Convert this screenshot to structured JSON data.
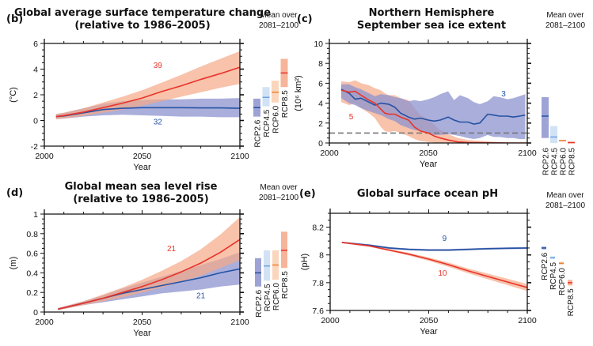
{
  "colors": {
    "rcp26_line": "#2452a3",
    "rcp26_band": "#8d93cf",
    "rcp45_line": "#6fa3dc",
    "rcp45_band": "#c9ddf3",
    "rcp60_line": "#f08030",
    "rcp60_band": "#f9cfb0",
    "rcp85_line": "#e8332a",
    "rcp85_band": "#f5a888",
    "overlap_band": "#b98a9a",
    "dashed": "#777777"
  },
  "side_header": [
    "Mean over",
    "2081–2100"
  ],
  "chart_data": [
    {
      "id": "b",
      "panel_label": "(b)",
      "type": "line",
      "title": [
        "Global average surface temperature change",
        "(relative to 1986–2005)"
      ],
      "xlabel": "Year",
      "ylabel": "(°C)",
      "xlim": [
        2000,
        2100
      ],
      "ylim": [
        -2,
        6
      ],
      "xticks": [
        2000,
        2050,
        2100
      ],
      "yticks": [
        -2,
        0,
        2,
        4,
        6
      ],
      "series": [
        {
          "name": "RCP2.6",
          "model_count": "32",
          "x": [
            2006,
            2010,
            2020,
            2030,
            2040,
            2050,
            2060,
            2070,
            2080,
            2090,
            2100
          ],
          "mean": [
            0.3,
            0.35,
            0.6,
            0.85,
            0.95,
            1.0,
            1.0,
            1.0,
            0.98,
            0.98,
            0.95
          ],
          "low": [
            0.1,
            0.15,
            0.3,
            0.4,
            0.45,
            0.4,
            0.35,
            0.3,
            0.3,
            0.25,
            0.25
          ],
          "high": [
            0.5,
            0.6,
            0.95,
            1.3,
            1.5,
            1.6,
            1.65,
            1.65,
            1.7,
            1.7,
            1.75
          ]
        },
        {
          "name": "RCP8.5",
          "model_count": "39",
          "x": [
            2006,
            2010,
            2020,
            2030,
            2040,
            2050,
            2060,
            2070,
            2080,
            2090,
            2100
          ],
          "mean": [
            0.3,
            0.38,
            0.65,
            1.0,
            1.35,
            1.75,
            2.25,
            2.7,
            3.2,
            3.65,
            4.15
          ],
          "low": [
            0.1,
            0.15,
            0.35,
            0.6,
            0.85,
            1.15,
            1.5,
            1.85,
            2.2,
            2.55,
            2.85
          ],
          "high": [
            0.5,
            0.6,
            0.95,
            1.4,
            1.85,
            2.35,
            2.95,
            3.55,
            4.2,
            4.8,
            5.4
          ]
        }
      ],
      "side_bars": [
        {
          "name": "RCP2.6",
          "mean": 1.0,
          "low": 0.3,
          "high": 1.7
        },
        {
          "name": "RCP4.5",
          "mean": 1.8,
          "low": 1.1,
          "high": 2.6
        },
        {
          "name": "RCP6.0",
          "mean": 2.2,
          "low": 1.4,
          "high": 3.1
        },
        {
          "name": "RCP8.5",
          "mean": 3.7,
          "low": 2.6,
          "high": 4.8
        }
      ]
    },
    {
      "id": "c",
      "panel_label": "(c)",
      "type": "line",
      "title": [
        "Northern Hemisphere",
        "September sea ice extent"
      ],
      "xlabel": "Year",
      "ylabel": "(10⁶ km²)",
      "xlim": [
        2000,
        2100
      ],
      "ylim": [
        0,
        10
      ],
      "xticks": [
        2000,
        2050,
        2100
      ],
      "yticks": [
        0,
        2,
        4,
        6,
        8,
        10
      ],
      "reference_line": 1,
      "series": [
        {
          "name": "RCP2.6",
          "model_count": "3",
          "x": [
            2006,
            2010,
            2013,
            2016,
            2020,
            2023,
            2026,
            2030,
            2033,
            2036,
            2040,
            2043,
            2046,
            2050,
            2053,
            2056,
            2060,
            2063,
            2066,
            2070,
            2073,
            2076,
            2080,
            2083,
            2086,
            2090,
            2093,
            2096,
            2099
          ],
          "mean": [
            5.4,
            5.0,
            4.4,
            4.5,
            4.1,
            3.8,
            4.0,
            3.9,
            3.6,
            3.0,
            2.6,
            2.4,
            2.5,
            2.3,
            2.2,
            2.3,
            2.6,
            2.3,
            2.1,
            2.1,
            1.9,
            2.0,
            2.9,
            2.8,
            2.7,
            2.7,
            2.6,
            2.7,
            2.8
          ],
          "low": [
            4.5,
            4.0,
            3.8,
            3.5,
            3.2,
            3.0,
            2.8,
            2.4,
            2.2,
            1.8,
            1.5,
            1.3,
            1.2,
            1.0,
            0.8,
            0.8,
            0.9,
            0.8,
            0.7,
            0.5,
            0.4,
            0.5,
            0.8,
            0.6,
            0.6,
            0.5,
            0.5,
            0.4,
            0.4
          ],
          "high": [
            5.9,
            5.9,
            5.6,
            5.4,
            5.0,
            4.7,
            4.9,
            4.8,
            4.6,
            4.5,
            4.2,
            4.3,
            4.2,
            4.4,
            4.6,
            4.9,
            5.2,
            4.3,
            4.8,
            4.5,
            4.1,
            3.9,
            4.2,
            4.7,
            4.6,
            4.4,
            4.5,
            4.7,
            4.9
          ]
        },
        {
          "name": "RCP8.5",
          "model_count": "5",
          "x": [
            2006,
            2010,
            2013,
            2016,
            2020,
            2023,
            2026,
            2028,
            2030,
            2033,
            2036,
            2040,
            2043,
            2046,
            2050,
            2053,
            2056,
            2060,
            2065,
            2070,
            2080,
            2090,
            2100
          ],
          "mean": [
            5.3,
            5.1,
            5.2,
            4.8,
            4.3,
            4.0,
            3.4,
            3.0,
            2.9,
            2.9,
            2.6,
            2.3,
            1.6,
            1.2,
            1.0,
            0.7,
            0.5,
            0.3,
            0.1,
            0.05,
            0.02,
            0.0,
            0.0
          ],
          "low": [
            4.1,
            3.8,
            4.0,
            3.5,
            3.0,
            2.5,
            1.6,
            1.2,
            1.1,
            1.2,
            1.0,
            0.7,
            0.4,
            0.2,
            0.1,
            0.05,
            0.0,
            0.0,
            0.0,
            0.0,
            0.0,
            0.0,
            0.0
          ],
          "high": [
            6.2,
            6.1,
            6.3,
            6.0,
            5.8,
            5.5,
            5.3,
            5.0,
            4.8,
            4.8,
            4.5,
            4.3,
            3.5,
            2.8,
            2.4,
            1.8,
            1.3,
            0.9,
            0.5,
            0.3,
            0.15,
            0.05,
            0.02
          ]
        }
      ],
      "side_bars": [
        {
          "name": "RCP2.6",
          "mean": 2.7,
          "low": 0.5,
          "high": 4.6
        },
        {
          "name": "RCP4.5",
          "mean": 0.6,
          "low": 0.0,
          "high": 1.7
        },
        {
          "name": "RCP6.0",
          "mean": 0.25,
          "low": 0.2,
          "high": 0.3
        },
        {
          "name": "RCP8.5",
          "mean": 0.05,
          "low": 0.0,
          "high": 0.1
        }
      ]
    },
    {
      "id": "d",
      "panel_label": "(d)",
      "type": "line",
      "title": [
        "Global mean sea level rise",
        "(relative to 1986–2005)"
      ],
      "xlabel": "Year",
      "ylabel": "(m)",
      "xlim": [
        2000,
        2100
      ],
      "ylim": [
        0,
        1
      ],
      "xticks": [
        2000,
        2050,
        2100
      ],
      "yticks": [
        0,
        0.2,
        0.4,
        0.6,
        0.8,
        1
      ],
      "series": [
        {
          "name": "RCP2.6",
          "model_count": "21",
          "x": [
            2007,
            2020,
            2030,
            2040,
            2050,
            2060,
            2070,
            2080,
            2090,
            2100
          ],
          "mean": [
            0.03,
            0.09,
            0.14,
            0.19,
            0.23,
            0.27,
            0.31,
            0.35,
            0.4,
            0.44
          ],
          "low": [
            0.02,
            0.07,
            0.1,
            0.13,
            0.16,
            0.19,
            0.21,
            0.23,
            0.26,
            0.28
          ],
          "high": [
            0.04,
            0.11,
            0.17,
            0.24,
            0.3,
            0.36,
            0.42,
            0.48,
            0.54,
            0.61
          ]
        },
        {
          "name": "RCP8.5",
          "model_count": "21",
          "x": [
            2007,
            2020,
            2030,
            2040,
            2050,
            2060,
            2070,
            2080,
            2090,
            2100
          ],
          "mean": [
            0.03,
            0.09,
            0.14,
            0.2,
            0.26,
            0.33,
            0.41,
            0.5,
            0.61,
            0.74
          ],
          "low": [
            0.02,
            0.07,
            0.11,
            0.15,
            0.2,
            0.25,
            0.31,
            0.37,
            0.45,
            0.53
          ],
          "high": [
            0.04,
            0.11,
            0.18,
            0.25,
            0.33,
            0.42,
            0.52,
            0.64,
            0.79,
            0.97
          ]
        }
      ],
      "side_bars": [
        {
          "name": "RCP2.6",
          "mean": 0.4,
          "low": 0.26,
          "high": 0.55
        },
        {
          "name": "RCP4.5",
          "mean": 0.47,
          "low": 0.32,
          "high": 0.63
        },
        {
          "name": "RCP6.0",
          "mean": 0.48,
          "low": 0.33,
          "high": 0.63
        },
        {
          "name": "RCP8.5",
          "mean": 0.63,
          "low": 0.45,
          "high": 0.82
        }
      ]
    },
    {
      "id": "e",
      "panel_label": "(e)",
      "type": "line",
      "title": [
        "Global surface ocean pH"
      ],
      "xlabel": "Year",
      "ylabel": "(pH)",
      "xlim": [
        2000,
        2100
      ],
      "ylim": [
        7.6,
        8.3
      ],
      "xticks": [
        2000,
        2050,
        2100
      ],
      "yticks": [
        7.6,
        7.8,
        8,
        8.2
      ],
      "ytick_labels": [
        "7.6",
        "7.8",
        "8",
        "8.2"
      ],
      "series": [
        {
          "name": "RCP2.6",
          "model_count": "9",
          "x": [
            2006,
            2020,
            2030,
            2040,
            2050,
            2060,
            2070,
            2080,
            2090,
            2100
          ],
          "mean": [
            8.09,
            8.07,
            8.05,
            8.04,
            8.035,
            8.035,
            8.04,
            8.045,
            8.048,
            8.05
          ],
          "low": [
            8.085,
            8.063,
            8.043,
            8.033,
            8.028,
            8.028,
            8.033,
            8.038,
            8.041,
            8.043
          ],
          "high": [
            8.095,
            8.077,
            8.057,
            8.047,
            8.042,
            8.042,
            8.047,
            8.052,
            8.055,
            8.057
          ]
        },
        {
          "name": "RCP8.5",
          "model_count": "10",
          "x": [
            2006,
            2020,
            2030,
            2040,
            2050,
            2060,
            2070,
            2080,
            2090,
            2100
          ],
          "mean": [
            8.09,
            8.065,
            8.035,
            8.005,
            7.97,
            7.93,
            7.885,
            7.845,
            7.805,
            7.765
          ],
          "low": [
            8.085,
            8.058,
            8.027,
            7.995,
            7.958,
            7.915,
            7.868,
            7.825,
            7.782,
            7.74
          ],
          "high": [
            8.095,
            8.072,
            8.043,
            8.015,
            7.982,
            7.945,
            7.902,
            7.865,
            7.828,
            7.79
          ]
        }
      ],
      "side_bars": [
        {
          "name": "RCP2.6",
          "mean": 8.05,
          "low": 8.04,
          "high": 8.06
        },
        {
          "name": "RCP4.5",
          "mean": 7.98,
          "low": 7.97,
          "high": 7.99
        },
        {
          "name": "RCP6.0",
          "mean": 7.94,
          "low": 7.93,
          "high": 7.95
        },
        {
          "name": "RCP8.5",
          "mean": 7.8,
          "low": 7.78,
          "high": 7.82
        }
      ]
    }
  ]
}
